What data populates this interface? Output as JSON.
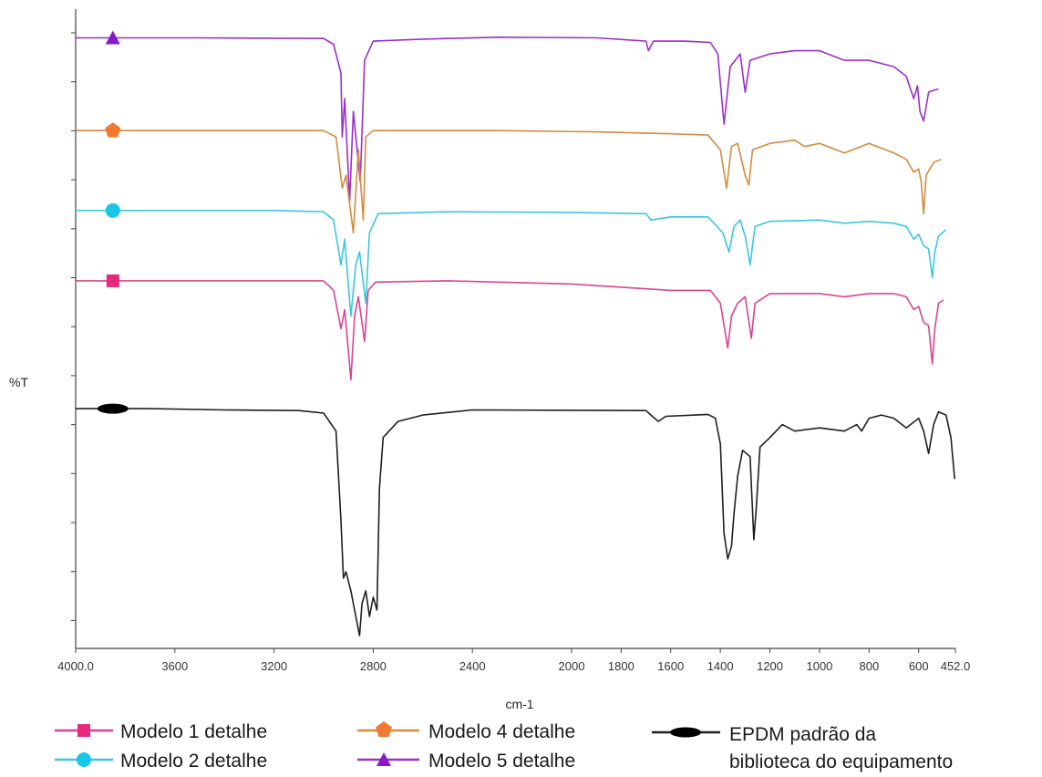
{
  "chart_data": {
    "type": "line",
    "title": "",
    "xlabel": "cm-1",
    "ylabel": "%T",
    "xlim": [
      4000.0,
      452.0
    ],
    "x_reversed": true,
    "x_ticks": [
      {
        "value": 4000,
        "label": "4000.0"
      },
      {
        "value": 3600,
        "label": "3600"
      },
      {
        "value": 3200,
        "label": "3200"
      },
      {
        "value": 2800,
        "label": "2800"
      },
      {
        "value": 2400,
        "label": "2400"
      },
      {
        "value": 2000,
        "label": "2000"
      },
      {
        "value": 1800,
        "label": "1800"
      },
      {
        "value": 1600,
        "label": "1600"
      },
      {
        "value": 1400,
        "label": "1400"
      },
      {
        "value": 1200,
        "label": "1200"
      },
      {
        "value": 1000,
        "label": "1000"
      },
      {
        "value": 800,
        "label": "800"
      },
      {
        "value": 600,
        "label": "600"
      },
      {
        "value": 452,
        "label": "452.0"
      }
    ],
    "y_tick_count": 13,
    "ylim": [
      0,
      100
    ],
    "grid": false,
    "legend_placement": "bottom",
    "series": [
      {
        "name": "Modelo 5 detalhe",
        "color": "#9b30c8",
        "marker": "triangle",
        "points": [
          [
            4000,
            95.5
          ],
          [
            3500,
            95.5
          ],
          [
            3000,
            95.4
          ],
          [
            2960,
            94.5
          ],
          [
            2930,
            90
          ],
          [
            2925,
            80
          ],
          [
            2915,
            86
          ],
          [
            2895,
            70
          ],
          [
            2880,
            84
          ],
          [
            2852,
            73
          ],
          [
            2835,
            92
          ],
          [
            2800,
            95
          ],
          [
            2600,
            95.3
          ],
          [
            2300,
            95.6
          ],
          [
            1900,
            95.5
          ],
          [
            1700,
            95
          ],
          [
            1690,
            93.5
          ],
          [
            1670,
            95
          ],
          [
            1550,
            95
          ],
          [
            1440,
            94.8
          ],
          [
            1410,
            93
          ],
          [
            1385,
            82
          ],
          [
            1360,
            91
          ],
          [
            1320,
            93
          ],
          [
            1300,
            87
          ],
          [
            1280,
            92
          ],
          [
            1200,
            93
          ],
          [
            1100,
            93.5
          ],
          [
            1000,
            93.5
          ],
          [
            900,
            92
          ],
          [
            800,
            92
          ],
          [
            700,
            91
          ],
          [
            650,
            89.5
          ],
          [
            620,
            86
          ],
          [
            605,
            88
          ],
          [
            595,
            84
          ],
          [
            580,
            82.5
          ],
          [
            560,
            87
          ],
          [
            540,
            87.3
          ],
          [
            520,
            87.5
          ]
        ]
      },
      {
        "name": "Modelo 4 detalhe",
        "color": "#d48a3f",
        "marker": "pentagon",
        "points": [
          [
            4000,
            81
          ],
          [
            3300,
            81
          ],
          [
            3000,
            81
          ],
          [
            2950,
            80
          ],
          [
            2925,
            72
          ],
          [
            2910,
            74
          ],
          [
            2880,
            65
          ],
          [
            2860,
            78
          ],
          [
            2840,
            67
          ],
          [
            2830,
            80
          ],
          [
            2800,
            81
          ],
          [
            2600,
            81
          ],
          [
            2300,
            81
          ],
          [
            1900,
            80.8
          ],
          [
            1600,
            80.5
          ],
          [
            1450,
            80.3
          ],
          [
            1400,
            78
          ],
          [
            1375,
            72
          ],
          [
            1355,
            78.5
          ],
          [
            1330,
            79
          ],
          [
            1300,
            74
          ],
          [
            1285,
            72.5
          ],
          [
            1270,
            78
          ],
          [
            1200,
            79
          ],
          [
            1100,
            79.5
          ],
          [
            1060,
            78.5
          ],
          [
            1000,
            79
          ],
          [
            900,
            77.5
          ],
          [
            800,
            79
          ],
          [
            700,
            77.5
          ],
          [
            650,
            76.5
          ],
          [
            620,
            74.5
          ],
          [
            600,
            75
          ],
          [
            590,
            73
          ],
          [
            580,
            68
          ],
          [
            570,
            74
          ],
          [
            540,
            76
          ],
          [
            510,
            76.5
          ]
        ]
      },
      {
        "name": "Modelo 2 detalhe",
        "color": "#3cc6dc",
        "marker": "circle",
        "points": [
          [
            4000,
            68.5
          ],
          [
            3200,
            68.5
          ],
          [
            3000,
            68.3
          ],
          [
            2960,
            67
          ],
          [
            2930,
            60
          ],
          [
            2915,
            64
          ],
          [
            2890,
            52
          ],
          [
            2870,
            60
          ],
          [
            2855,
            62
          ],
          [
            2830,
            54
          ],
          [
            2815,
            65
          ],
          [
            2780,
            68
          ],
          [
            2500,
            68.3
          ],
          [
            2000,
            68.2
          ],
          [
            1700,
            68
          ],
          [
            1680,
            67
          ],
          [
            1600,
            67.5
          ],
          [
            1450,
            67.5
          ],
          [
            1390,
            65
          ],
          [
            1365,
            62
          ],
          [
            1345,
            66
          ],
          [
            1320,
            67
          ],
          [
            1300,
            64.5
          ],
          [
            1280,
            60
          ],
          [
            1260,
            66
          ],
          [
            1200,
            66.8
          ],
          [
            1000,
            67
          ],
          [
            900,
            66.5
          ],
          [
            800,
            66.8
          ],
          [
            700,
            66.5
          ],
          [
            650,
            66
          ],
          [
            620,
            64
          ],
          [
            600,
            64.8
          ],
          [
            580,
            63
          ],
          [
            560,
            62.5
          ],
          [
            545,
            58
          ],
          [
            535,
            62
          ],
          [
            520,
            64.5
          ],
          [
            490,
            65.5
          ]
        ]
      },
      {
        "name": "Modelo 1 detalhe",
        "color": "#d8448f",
        "marker": "square",
        "points": [
          [
            4000,
            57.5
          ],
          [
            3500,
            57.5
          ],
          [
            3000,
            57.5
          ],
          [
            2960,
            56
          ],
          [
            2930,
            50
          ],
          [
            2915,
            53
          ],
          [
            2890,
            42
          ],
          [
            2875,
            52
          ],
          [
            2860,
            55
          ],
          [
            2835,
            48
          ],
          [
            2820,
            56
          ],
          [
            2790,
            57.3
          ],
          [
            2500,
            57.5
          ],
          [
            2000,
            57
          ],
          [
            1600,
            56
          ],
          [
            1440,
            56
          ],
          [
            1400,
            54
          ],
          [
            1370,
            47
          ],
          [
            1355,
            52
          ],
          [
            1330,
            54
          ],
          [
            1300,
            55
          ],
          [
            1275,
            48.5
          ],
          [
            1260,
            54
          ],
          [
            1200,
            55.5
          ],
          [
            1000,
            55.5
          ],
          [
            900,
            55
          ],
          [
            800,
            55.5
          ],
          [
            700,
            55.5
          ],
          [
            650,
            55
          ],
          [
            620,
            53
          ],
          [
            600,
            53.5
          ],
          [
            580,
            51
          ],
          [
            560,
            50.5
          ],
          [
            545,
            44.5
          ],
          [
            535,
            50
          ],
          [
            520,
            54
          ],
          [
            500,
            54.5
          ]
        ]
      },
      {
        "name": "EPDM padrão da biblioteca do equipamento",
        "color": "#1f1f1f",
        "marker": "ellipse",
        "points": [
          [
            4000,
            37.5
          ],
          [
            3700,
            37.5
          ],
          [
            3400,
            37.3
          ],
          [
            3100,
            37.2
          ],
          [
            3000,
            36.8
          ],
          [
            2950,
            34
          ],
          [
            2930,
            20
          ],
          [
            2920,
            11
          ],
          [
            2910,
            12
          ],
          [
            2890,
            9
          ],
          [
            2870,
            5
          ],
          [
            2855,
            2
          ],
          [
            2845,
            7
          ],
          [
            2830,
            9
          ],
          [
            2815,
            5
          ],
          [
            2800,
            8
          ],
          [
            2785,
            6
          ],
          [
            2775,
            25
          ],
          [
            2760,
            33
          ],
          [
            2700,
            35.5
          ],
          [
            2600,
            36.5
          ],
          [
            2400,
            37.3
          ],
          [
            1700,
            37.2
          ],
          [
            1680,
            36.5
          ],
          [
            1650,
            35.5
          ],
          [
            1620,
            36.3
          ],
          [
            1450,
            36.6
          ],
          [
            1420,
            36
          ],
          [
            1400,
            32
          ],
          [
            1385,
            18
          ],
          [
            1370,
            14
          ],
          [
            1355,
            16
          ],
          [
            1345,
            21
          ],
          [
            1330,
            27
          ],
          [
            1310,
            31
          ],
          [
            1280,
            30
          ],
          [
            1265,
            17
          ],
          [
            1255,
            22
          ],
          [
            1240,
            31.5
          ],
          [
            1200,
            33
          ],
          [
            1150,
            35
          ],
          [
            1100,
            34
          ],
          [
            1000,
            34.5
          ],
          [
            900,
            34
          ],
          [
            850,
            35
          ],
          [
            830,
            34
          ],
          [
            800,
            36
          ],
          [
            750,
            36.5
          ],
          [
            700,
            36
          ],
          [
            650,
            34.5
          ],
          [
            600,
            36
          ],
          [
            580,
            34
          ],
          [
            560,
            30.5
          ],
          [
            540,
            35
          ],
          [
            520,
            37
          ],
          [
            490,
            36.5
          ],
          [
            470,
            33
          ],
          [
            455,
            26.5
          ]
        ]
      }
    ]
  },
  "legend": {
    "items": [
      {
        "label": "Modelo 1 detalhe",
        "color": "#d8448f",
        "marker": "square"
      },
      {
        "label": "Modelo 2 detalhe",
        "color": "#3cc6dc",
        "marker": "circle"
      },
      {
        "label": "Modelo 4 detalhe",
        "color": "#d48a3f",
        "marker": "pentagon"
      },
      {
        "label": "Modelo 5 detalhe",
        "color": "#9b30c8",
        "marker": "triangle"
      },
      {
        "label_line1": "EPDM padrão da",
        "label_line2": "biblioteca do equipamento",
        "color": "#1f1f1f",
        "marker": "ellipse"
      }
    ]
  },
  "marker_colors": {
    "square": "#e8287a",
    "circle": "#18c6e8",
    "pentagon": "#f07a32",
    "triangle": "#8a18c8",
    "ellipse": "#000000"
  }
}
